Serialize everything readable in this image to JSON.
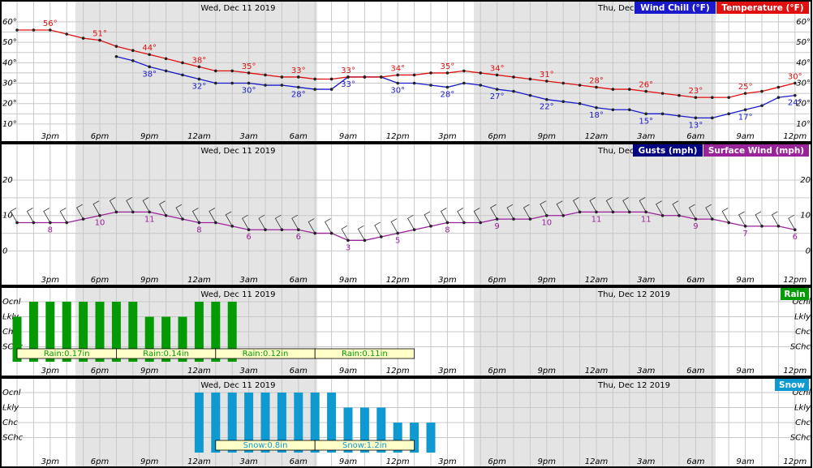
{
  "dates": [
    "Wed, Dec 11 2019",
    "Thu, Dec 12 2019"
  ],
  "x_labels": [
    "3pm",
    "6pm",
    "9pm",
    "12am",
    "3am",
    "6am",
    "9am",
    "12pm",
    "3pm",
    "6pm",
    "9pm",
    "12am",
    "3am",
    "6am",
    "9am",
    "12pm"
  ],
  "chart_data": [
    {
      "type": "line",
      "ylim": [
        6,
        68.7
      ],
      "yticks": [
        {
          "value": 10,
          "label": "10°"
        },
        {
          "value": 20,
          "label": "20°"
        },
        {
          "value": 30,
          "label": "30°"
        },
        {
          "value": 40,
          "label": "40°"
        },
        {
          "value": 50,
          "label": "50°"
        },
        {
          "value": 60,
          "label": "60°"
        }
      ],
      "series": [
        {
          "name": "Wind Chill (°F)",
          "color": "#1a1acc",
          "values": [
            null,
            null,
            null,
            null,
            null,
            null,
            43,
            41,
            38,
            36,
            34,
            32,
            30,
            30,
            30,
            29,
            29,
            28,
            27,
            27,
            33,
            33,
            33,
            30,
            30,
            29,
            28,
            30,
            29,
            27,
            26,
            24,
            22,
            21,
            20,
            18,
            17,
            17,
            15,
            15,
            14,
            13,
            13,
            15,
            17,
            19,
            23,
            24
          ],
          "value_labels": [
            null,
            null,
            null,
            null,
            null,
            null,
            null,
            null,
            "38°",
            null,
            null,
            "32°",
            null,
            null,
            "30°",
            null,
            null,
            "28°",
            null,
            null,
            "33°",
            null,
            null,
            "30°",
            null,
            null,
            "28°",
            null,
            null,
            "27°",
            null,
            null,
            "22°",
            null,
            null,
            "18°",
            null,
            null,
            "15°",
            null,
            null,
            "13°",
            null,
            null,
            "17°",
            null,
            null,
            "24°"
          ]
        },
        {
          "name": "Temperature (°F)",
          "color": "#e01010",
          "values": [
            56,
            56,
            56,
            54,
            52,
            51,
            48,
            46,
            44,
            42,
            40,
            38,
            36,
            36,
            35,
            34,
            33,
            33,
            32,
            32,
            33,
            33,
            33,
            34,
            34,
            35,
            35,
            36,
            35,
            34,
            33,
            32,
            31,
            30,
            29,
            28,
            27,
            27,
            26,
            25,
            24,
            23,
            23,
            23,
            25,
            26,
            28,
            30
          ],
          "value_labels": [
            null,
            null,
            "56°",
            null,
            null,
            "51°",
            null,
            null,
            "44°",
            null,
            null,
            "38°",
            null,
            null,
            "35°",
            null,
            null,
            "33°",
            null,
            null,
            "33°",
            null,
            null,
            "34°",
            null,
            null,
            "35°",
            null,
            null,
            "34°",
            null,
            null,
            "31°",
            null,
            null,
            "28°",
            null,
            null,
            "26°",
            null,
            null,
            "23°",
            null,
            null,
            "25°",
            null,
            null,
            "30°"
          ]
        }
      ]
    },
    {
      "type": "line",
      "ylim": [
        -7,
        29.4
      ],
      "yticks": [
        0,
        10,
        20
      ],
      "series": [
        {
          "name": "Gusts (mph)",
          "color": "#000080",
          "values": [
            null,
            null,
            null,
            null,
            null,
            null,
            null,
            null,
            null,
            null,
            null,
            null,
            null,
            null,
            null,
            null,
            null,
            null,
            null,
            null,
            null,
            null,
            null,
            null,
            null,
            null,
            null,
            null,
            null,
            null,
            null,
            null,
            null,
            null,
            null,
            null,
            null,
            null,
            null,
            null,
            null,
            null,
            null,
            null,
            null,
            null,
            null,
            null
          ]
        },
        {
          "name": "Surface Wind (mph)",
          "color": "#9a239a",
          "values": [
            8,
            8,
            8,
            8,
            9,
            10,
            11,
            11,
            11,
            10,
            9,
            8,
            8,
            7,
            6,
            6,
            6,
            6,
            5,
            5,
            3,
            3,
            4,
            5,
            6,
            7,
            8,
            8,
            8,
            9,
            9,
            9,
            10,
            10,
            11,
            11,
            11,
            11,
            11,
            10,
            10,
            9,
            9,
            8,
            7,
            7,
            7,
            6
          ]
        }
      ]
    },
    {
      "type": "bar",
      "levels": [
        "Ocnl",
        "Lkly",
        "Chc",
        "SChc"
      ],
      "series": [
        {
          "name": "Rain",
          "color": "#049a04",
          "values": [
            "Lkly",
            "Ocnl",
            "Ocnl",
            "Ocnl",
            "Ocnl",
            "Ocnl",
            "Ocnl",
            "Ocnl",
            "Lkly",
            "Lkly",
            "Lkly",
            "Ocnl",
            "Ocnl",
            "Ocnl",
            null,
            null,
            null,
            null,
            null,
            null,
            null,
            null,
            null,
            null,
            null,
            null,
            null,
            null,
            null,
            null,
            null,
            null,
            null,
            null,
            null,
            null,
            null,
            null,
            null,
            null,
            null,
            null,
            null,
            null,
            null,
            null,
            null,
            null
          ],
          "amount_labels": [
            "Rain:0.17in",
            null,
            null,
            null,
            null,
            null,
            "Rain:0.14in",
            null,
            null,
            null,
            null,
            null,
            "Rain:0.12in",
            null,
            null,
            null,
            null,
            null,
            "Rain:0.11in",
            null,
            null,
            null,
            null,
            null,
            null,
            null,
            null,
            null,
            null,
            null,
            null,
            null,
            null,
            null,
            null,
            null,
            null,
            null,
            null,
            null,
            null,
            null,
            null,
            null,
            null,
            null,
            null,
            null
          ]
        }
      ]
    },
    {
      "type": "bar",
      "levels": [
        "Ocnl",
        "Lkly",
        "Chc",
        "SChc"
      ],
      "series": [
        {
          "name": "Snow",
          "color": "#0e9ad0",
          "values": [
            null,
            null,
            null,
            null,
            null,
            null,
            null,
            null,
            null,
            null,
            null,
            "Ocnl",
            "Ocnl",
            "Ocnl",
            "Ocnl",
            "Ocnl",
            "Ocnl",
            "Ocnl",
            "Ocnl",
            "Ocnl",
            "Lkly",
            "Lkly",
            "Lkly",
            "Chc",
            "Chc",
            "Chc",
            null,
            null,
            null,
            null,
            null,
            null,
            null,
            null,
            null,
            null,
            null,
            null,
            null,
            null,
            null,
            null,
            null,
            null,
            null,
            null,
            null,
            null
          ],
          "amount_labels": [
            null,
            null,
            null,
            null,
            null,
            null,
            null,
            null,
            null,
            null,
            null,
            null,
            "Snow:0.8in",
            null,
            null,
            null,
            null,
            null,
            "Snow:1.2in",
            null,
            null,
            null,
            null,
            null,
            null,
            null,
            null,
            null,
            null,
            null,
            null,
            null,
            null,
            null,
            null,
            null,
            null,
            null,
            null,
            null,
            null,
            null,
            null,
            null,
            null,
            null,
            null,
            null
          ]
        }
      ]
    }
  ]
}
